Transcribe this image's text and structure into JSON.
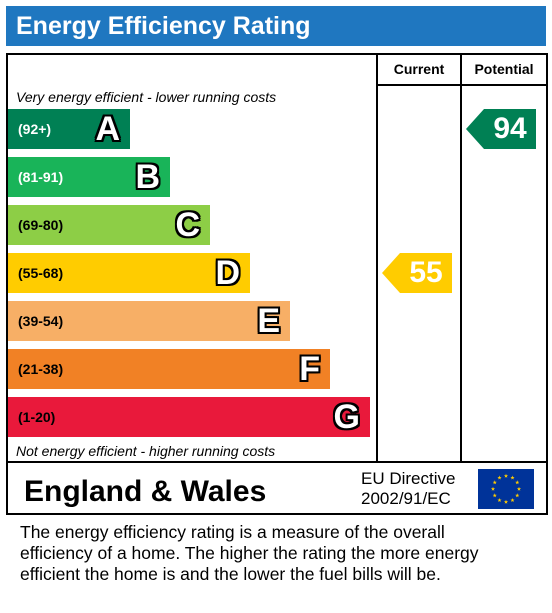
{
  "title": "Energy Efficiency Rating",
  "columns": {
    "current": "Current",
    "potential": "Potential"
  },
  "top_caption": "Very energy efficient - lower running costs",
  "bottom_caption": "Not energy efficient - higher running costs",
  "chart_data": {
    "type": "bar",
    "categories": [
      "A",
      "B",
      "C",
      "D",
      "E",
      "F",
      "G"
    ],
    "bands": [
      {
        "letter": "A",
        "range": "(92+)",
        "color": "#008054",
        "text_color": "#ffffff"
      },
      {
        "letter": "B",
        "range": "(81-91)",
        "color": "#19b459",
        "text_color": "#ffffff"
      },
      {
        "letter": "C",
        "range": "(69-80)",
        "color": "#8dce46",
        "text_color": "#000000"
      },
      {
        "letter": "D",
        "range": "(55-68)",
        "color": "#ffcc00",
        "text_color": "#000000"
      },
      {
        "letter": "E",
        "range": "(39-54)",
        "color": "#f7af66",
        "text_color": "#000000"
      },
      {
        "letter": "F",
        "range": "(21-38)",
        "color": "#f18125",
        "text_color": "#000000"
      },
      {
        "letter": "G",
        "range": "(1-20)",
        "color": "#e9193b",
        "text_color": "#000000"
      }
    ],
    "current": {
      "value": 55,
      "band": "D",
      "color": "#ffcc00"
    },
    "potential": {
      "value": 94,
      "band": "A",
      "color": "#008054"
    }
  },
  "region": "England & Wales",
  "directive": {
    "line1": "EU Directive",
    "line2": "2002/91/EC"
  },
  "flag_colors": {
    "field": "#003399",
    "stars": "#ffcc00"
  },
  "footer": {
    "line1": "The energy efficiency rating is a measure of the overall",
    "line2": "efficiency of a home.  The higher the rating the more energy",
    "line3": "efficient the home is and the lower the fuel bills will be."
  }
}
